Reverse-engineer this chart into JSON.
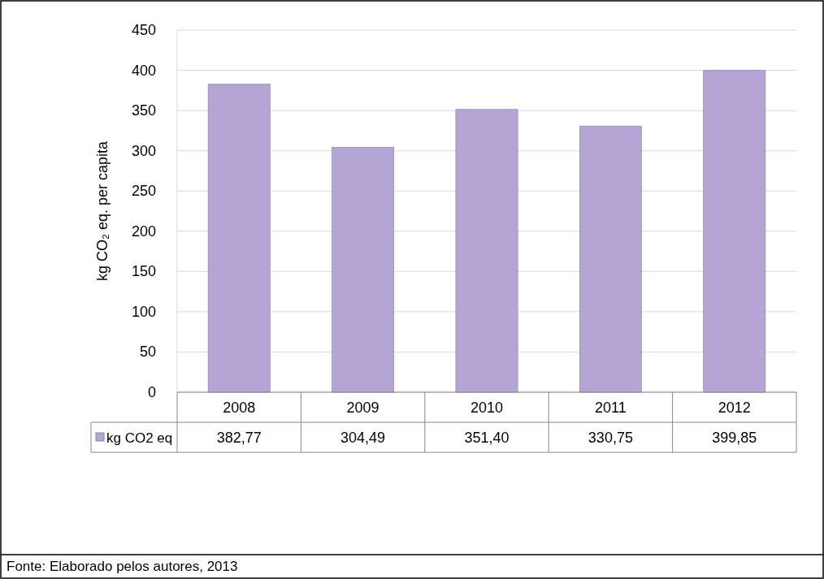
{
  "chart_data": {
    "type": "bar",
    "ylabel": "kg CO₂ eq. per capita",
    "categories": [
      "2008",
      "2009",
      "2010",
      "2011",
      "2012"
    ],
    "series": [
      {
        "name": "kg CO2 eq",
        "color": "#b4a5d5",
        "values": [
          382.77,
          304.49,
          351.4,
          330.75,
          399.85
        ],
        "value_labels": [
          "382,77",
          "304,49",
          "351,40",
          "330,75",
          "399,85"
        ]
      }
    ],
    "ylim": [
      0,
      450
    ],
    "yticks": [
      0,
      50,
      100,
      150,
      200,
      250,
      300,
      350,
      400,
      450
    ],
    "grid": "y",
    "annotations": [
      "Fonte: Elaborado pelos autores, 2013"
    ]
  }
}
